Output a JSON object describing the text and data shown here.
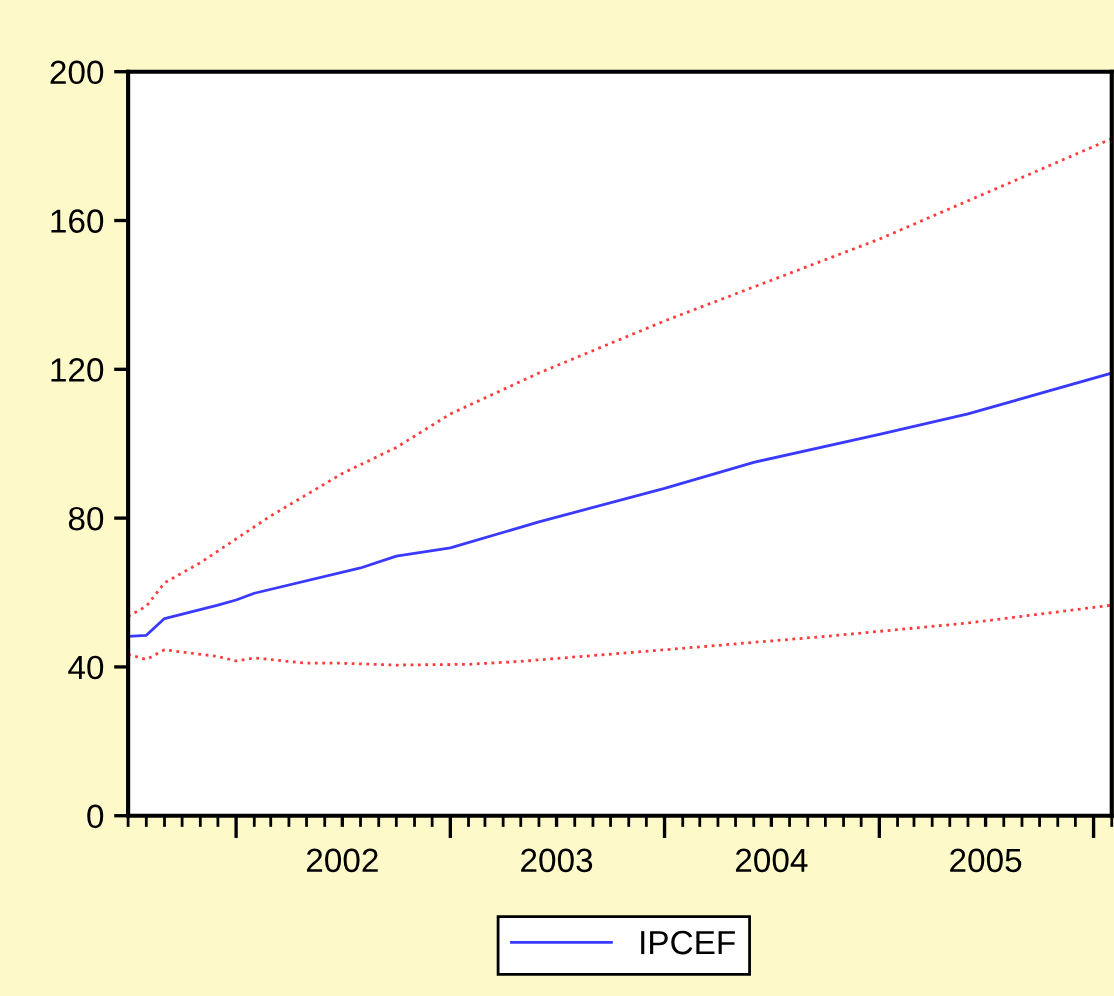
{
  "chart_data": {
    "type": "line",
    "xlim": [
      "2001-07",
      "2006-02"
    ],
    "xticks": [
      {
        "value": "2002-01",
        "label": null
      },
      {
        "value": "2002-07",
        "label": "2002"
      },
      {
        "value": "2003-01",
        "label": null
      },
      {
        "value": "2003-07",
        "label": "2003"
      },
      {
        "value": "2004-01",
        "label": null
      },
      {
        "value": "2004-07",
        "label": "2004"
      },
      {
        "value": "2005-01",
        "label": null
      },
      {
        "value": "2005-07",
        "label": "2005"
      },
      {
        "value": "2006-01",
        "label": null
      }
    ],
    "ylim": [
      0,
      200
    ],
    "yticks": [
      0,
      40,
      80,
      120,
      160,
      200
    ],
    "grid": false,
    "legend": "bottom",
    "series": [
      {
        "name": "IPCEF",
        "color": "#3a3aff",
        "line_style": "solid",
        "x": [
          "2001-07",
          "2001-08",
          "2001-09",
          "2001-12",
          "2002-01",
          "2002-02",
          "2002-08",
          "2002-10",
          "2003-01",
          "2003-06",
          "2004-01",
          "2004-06",
          "2005-01",
          "2005-06",
          "2006-02"
        ],
        "values": [
          48.2,
          48.5,
          53,
          56.6,
          58,
          59.8,
          66.6,
          69.8,
          72,
          79,
          88,
          95,
          102.5,
          108,
          119
        ]
      },
      {
        "color": "#ff3b3b",
        "line_style": "dotted",
        "x": [
          "2001-07",
          "2001-08",
          "2001-09",
          "2001-11",
          "2002-03",
          "2002-07",
          "2002-10",
          "2003-01",
          "2003-06",
          "2004-01",
          "2005-01",
          "2006-02"
        ],
        "values": [
          53.6,
          56.3,
          62.6,
          68,
          80.6,
          92,
          99,
          108,
          119,
          133,
          155,
          182
        ]
      },
      {
        "color": "#ff3b3b",
        "line_style": "dotted",
        "x": [
          "2001-07",
          "2001-08",
          "2001-09",
          "2001-12",
          "2002-01",
          "2002-02",
          "2002-05",
          "2002-07",
          "2002-10",
          "2003-02",
          "2003-05",
          "2004-01",
          "2004-10",
          "2005-06",
          "2006-02"
        ],
        "values": [
          43.4,
          42,
          44.6,
          42.8,
          41.6,
          42.4,
          41,
          41,
          40.5,
          40.7,
          41.5,
          44.6,
          48.2,
          51.8,
          56.6
        ]
      }
    ]
  }
}
